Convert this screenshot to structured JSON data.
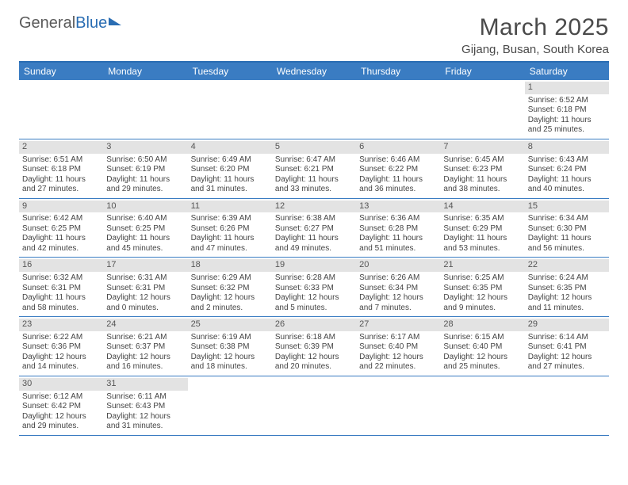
{
  "brand": {
    "part1": "General",
    "part2": "Blue"
  },
  "title": "March 2025",
  "location": "Gijang, Busan, South Korea",
  "colors": {
    "header_bar": "#3a7cc2",
    "accent_line": "#2a6db3",
    "daynum_bg": "#e3e3e3",
    "text": "#444444",
    "background": "#ffffff"
  },
  "day_names": [
    "Sunday",
    "Monday",
    "Tuesday",
    "Wednesday",
    "Thursday",
    "Friday",
    "Saturday"
  ],
  "weeks": [
    [
      {
        "n": "",
        "empty": true
      },
      {
        "n": "",
        "empty": true
      },
      {
        "n": "",
        "empty": true
      },
      {
        "n": "",
        "empty": true
      },
      {
        "n": "",
        "empty": true
      },
      {
        "n": "",
        "empty": true
      },
      {
        "n": "1",
        "sunrise": "Sunrise: 6:52 AM",
        "sunset": "Sunset: 6:18 PM",
        "d1": "Daylight: 11 hours",
        "d2": "and 25 minutes."
      }
    ],
    [
      {
        "n": "2",
        "sunrise": "Sunrise: 6:51 AM",
        "sunset": "Sunset: 6:18 PM",
        "d1": "Daylight: 11 hours",
        "d2": "and 27 minutes."
      },
      {
        "n": "3",
        "sunrise": "Sunrise: 6:50 AM",
        "sunset": "Sunset: 6:19 PM",
        "d1": "Daylight: 11 hours",
        "d2": "and 29 minutes."
      },
      {
        "n": "4",
        "sunrise": "Sunrise: 6:49 AM",
        "sunset": "Sunset: 6:20 PM",
        "d1": "Daylight: 11 hours",
        "d2": "and 31 minutes."
      },
      {
        "n": "5",
        "sunrise": "Sunrise: 6:47 AM",
        "sunset": "Sunset: 6:21 PM",
        "d1": "Daylight: 11 hours",
        "d2": "and 33 minutes."
      },
      {
        "n": "6",
        "sunrise": "Sunrise: 6:46 AM",
        "sunset": "Sunset: 6:22 PM",
        "d1": "Daylight: 11 hours",
        "d2": "and 36 minutes."
      },
      {
        "n": "7",
        "sunrise": "Sunrise: 6:45 AM",
        "sunset": "Sunset: 6:23 PM",
        "d1": "Daylight: 11 hours",
        "d2": "and 38 minutes."
      },
      {
        "n": "8",
        "sunrise": "Sunrise: 6:43 AM",
        "sunset": "Sunset: 6:24 PM",
        "d1": "Daylight: 11 hours",
        "d2": "and 40 minutes."
      }
    ],
    [
      {
        "n": "9",
        "sunrise": "Sunrise: 6:42 AM",
        "sunset": "Sunset: 6:25 PM",
        "d1": "Daylight: 11 hours",
        "d2": "and 42 minutes."
      },
      {
        "n": "10",
        "sunrise": "Sunrise: 6:40 AM",
        "sunset": "Sunset: 6:25 PM",
        "d1": "Daylight: 11 hours",
        "d2": "and 45 minutes."
      },
      {
        "n": "11",
        "sunrise": "Sunrise: 6:39 AM",
        "sunset": "Sunset: 6:26 PM",
        "d1": "Daylight: 11 hours",
        "d2": "and 47 minutes."
      },
      {
        "n": "12",
        "sunrise": "Sunrise: 6:38 AM",
        "sunset": "Sunset: 6:27 PM",
        "d1": "Daylight: 11 hours",
        "d2": "and 49 minutes."
      },
      {
        "n": "13",
        "sunrise": "Sunrise: 6:36 AM",
        "sunset": "Sunset: 6:28 PM",
        "d1": "Daylight: 11 hours",
        "d2": "and 51 minutes."
      },
      {
        "n": "14",
        "sunrise": "Sunrise: 6:35 AM",
        "sunset": "Sunset: 6:29 PM",
        "d1": "Daylight: 11 hours",
        "d2": "and 53 minutes."
      },
      {
        "n": "15",
        "sunrise": "Sunrise: 6:34 AM",
        "sunset": "Sunset: 6:30 PM",
        "d1": "Daylight: 11 hours",
        "d2": "and 56 minutes."
      }
    ],
    [
      {
        "n": "16",
        "sunrise": "Sunrise: 6:32 AM",
        "sunset": "Sunset: 6:31 PM",
        "d1": "Daylight: 11 hours",
        "d2": "and 58 minutes."
      },
      {
        "n": "17",
        "sunrise": "Sunrise: 6:31 AM",
        "sunset": "Sunset: 6:31 PM",
        "d1": "Daylight: 12 hours",
        "d2": "and 0 minutes."
      },
      {
        "n": "18",
        "sunrise": "Sunrise: 6:29 AM",
        "sunset": "Sunset: 6:32 PM",
        "d1": "Daylight: 12 hours",
        "d2": "and 2 minutes."
      },
      {
        "n": "19",
        "sunrise": "Sunrise: 6:28 AM",
        "sunset": "Sunset: 6:33 PM",
        "d1": "Daylight: 12 hours",
        "d2": "and 5 minutes."
      },
      {
        "n": "20",
        "sunrise": "Sunrise: 6:26 AM",
        "sunset": "Sunset: 6:34 PM",
        "d1": "Daylight: 12 hours",
        "d2": "and 7 minutes."
      },
      {
        "n": "21",
        "sunrise": "Sunrise: 6:25 AM",
        "sunset": "Sunset: 6:35 PM",
        "d1": "Daylight: 12 hours",
        "d2": "and 9 minutes."
      },
      {
        "n": "22",
        "sunrise": "Sunrise: 6:24 AM",
        "sunset": "Sunset: 6:35 PM",
        "d1": "Daylight: 12 hours",
        "d2": "and 11 minutes."
      }
    ],
    [
      {
        "n": "23",
        "sunrise": "Sunrise: 6:22 AM",
        "sunset": "Sunset: 6:36 PM",
        "d1": "Daylight: 12 hours",
        "d2": "and 14 minutes."
      },
      {
        "n": "24",
        "sunrise": "Sunrise: 6:21 AM",
        "sunset": "Sunset: 6:37 PM",
        "d1": "Daylight: 12 hours",
        "d2": "and 16 minutes."
      },
      {
        "n": "25",
        "sunrise": "Sunrise: 6:19 AM",
        "sunset": "Sunset: 6:38 PM",
        "d1": "Daylight: 12 hours",
        "d2": "and 18 minutes."
      },
      {
        "n": "26",
        "sunrise": "Sunrise: 6:18 AM",
        "sunset": "Sunset: 6:39 PM",
        "d1": "Daylight: 12 hours",
        "d2": "and 20 minutes."
      },
      {
        "n": "27",
        "sunrise": "Sunrise: 6:17 AM",
        "sunset": "Sunset: 6:40 PM",
        "d1": "Daylight: 12 hours",
        "d2": "and 22 minutes."
      },
      {
        "n": "28",
        "sunrise": "Sunrise: 6:15 AM",
        "sunset": "Sunset: 6:40 PM",
        "d1": "Daylight: 12 hours",
        "d2": "and 25 minutes."
      },
      {
        "n": "29",
        "sunrise": "Sunrise: 6:14 AM",
        "sunset": "Sunset: 6:41 PM",
        "d1": "Daylight: 12 hours",
        "d2": "and 27 minutes."
      }
    ],
    [
      {
        "n": "30",
        "sunrise": "Sunrise: 6:12 AM",
        "sunset": "Sunset: 6:42 PM",
        "d1": "Daylight: 12 hours",
        "d2": "and 29 minutes."
      },
      {
        "n": "31",
        "sunrise": "Sunrise: 6:11 AM",
        "sunset": "Sunset: 6:43 PM",
        "d1": "Daylight: 12 hours",
        "d2": "and 31 minutes."
      },
      {
        "n": "",
        "empty": true
      },
      {
        "n": "",
        "empty": true
      },
      {
        "n": "",
        "empty": true
      },
      {
        "n": "",
        "empty": true
      },
      {
        "n": "",
        "empty": true
      }
    ]
  ]
}
